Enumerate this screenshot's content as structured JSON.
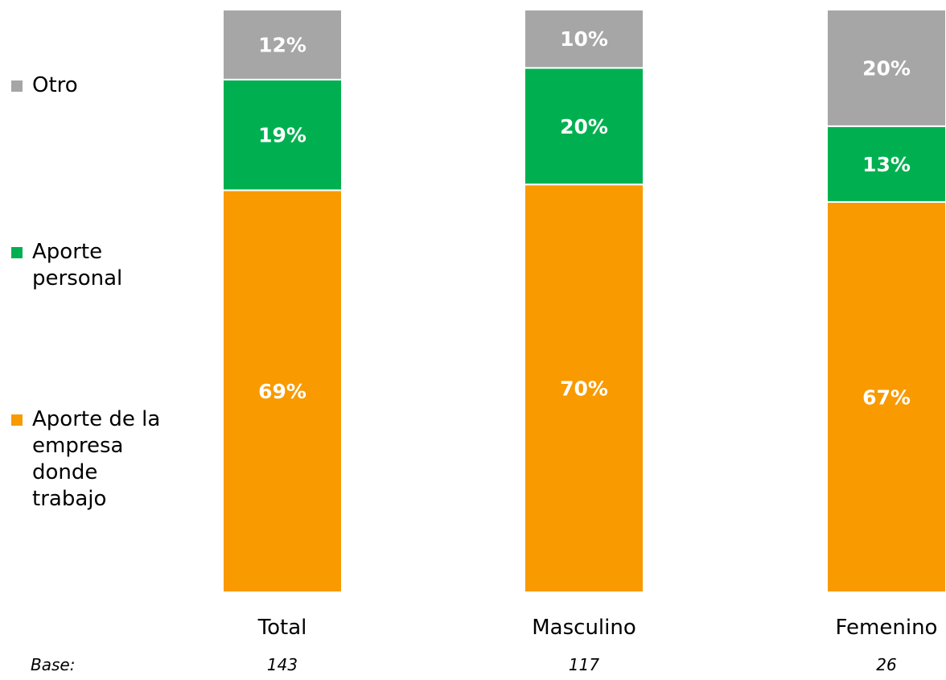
{
  "chart_data": {
    "type": "bar",
    "stacked": true,
    "categories": [
      "Total",
      "Masculino",
      "Femenino"
    ],
    "series": [
      {
        "name": "Aporte de la empresa donde trabajo",
        "values": [
          69,
          70,
          67
        ],
        "color": "#f89a00"
      },
      {
        "name": "Aporte personal",
        "values": [
          19,
          20,
          13
        ],
        "color": "#00b050"
      },
      {
        "name": "Otro",
        "values": [
          12,
          10,
          20
        ],
        "color": "#a6a6a6"
      }
    ],
    "data_labels": [
      [
        "69%",
        "70%",
        "67%"
      ],
      [
        "19%",
        "20%",
        "13%"
      ],
      [
        "12%",
        "10%",
        "20%"
      ]
    ],
    "ylim": [
      0,
      100
    ],
    "legend_position": "left",
    "base": {
      "label": "Base:",
      "values": [
        "143",
        "117",
        "26"
      ]
    }
  },
  "legend": [
    {
      "label": "Otro",
      "color": "#a6a6a6"
    },
    {
      "label": "Aporte personal",
      "color": "#00b050"
    },
    {
      "label": "Aporte de la empresa donde trabajo",
      "color": "#f89a00"
    }
  ]
}
